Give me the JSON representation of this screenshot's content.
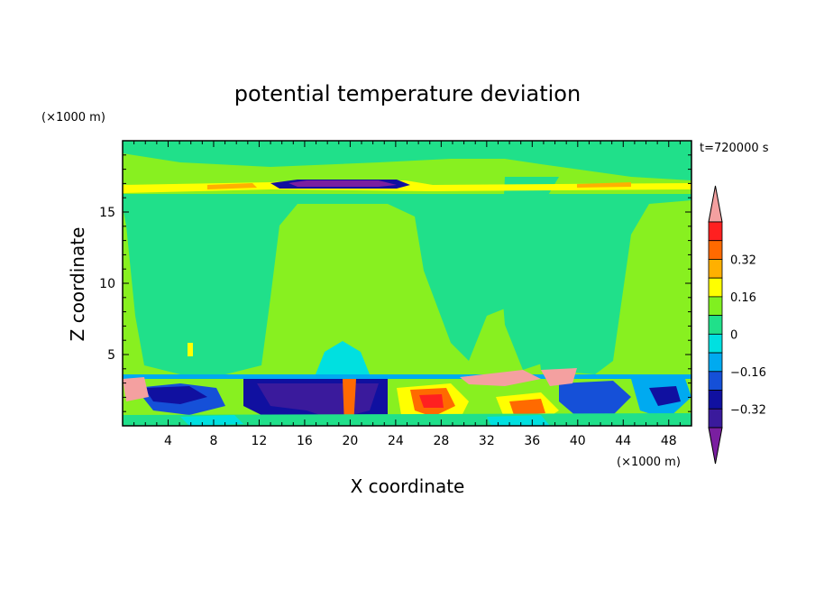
{
  "chart_data": {
    "type": "heatmap",
    "title": "potential temperature deviation",
    "time_label": "t=720000 s",
    "xlabel": "X coordinate",
    "ylabel": "Z coordinate",
    "x_unit": "(×1000 m)",
    "y_unit": "(×1000 m)",
    "xlim": [
      0,
      50
    ],
    "ylim": [
      0,
      20
    ],
    "x_ticks": [
      "4",
      "8",
      "12",
      "16",
      "20",
      "24",
      "28",
      "32",
      "36",
      "40",
      "44",
      "48"
    ],
    "y_ticks": [
      "5",
      "10",
      "15"
    ],
    "colorbar": {
      "levels": [
        -0.48,
        -0.4,
        -0.32,
        -0.24,
        -0.16,
        -0.08,
        0,
        0.08,
        0.16,
        0.24,
        0.32,
        0.4
      ],
      "colors": [
        "#7a1fa0",
        "#3a1a9c",
        "#1010a0",
        "#1550d8",
        "#00aaf0",
        "#00e0e0",
        "#20e08a",
        "#80f020",
        "#ffff00",
        "#ffb000",
        "#ff6a00",
        "#ff2020",
        "#f4a0a0"
      ],
      "tick_labels": [
        "0.32",
        "0.16",
        "0",
        "−0.16",
        "−0.32"
      ]
    },
    "background": "#88f020"
  }
}
